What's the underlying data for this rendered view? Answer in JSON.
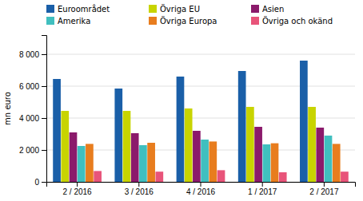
{
  "chart_data": {
    "type": "bar",
    "categories": [
      "2 / 2016",
      "3 / 2016",
      "4 / 2016",
      "1 / 2017",
      "2 / 2017"
    ],
    "series": [
      {
        "name": "Euroområdet",
        "color": "#1a5fa8",
        "values": [
          6450,
          5850,
          6600,
          6950,
          7600
        ]
      },
      {
        "name": "Övriga EU",
        "color": "#c8d400",
        "values": [
          4450,
          4450,
          4600,
          4700,
          4700
        ]
      },
      {
        "name": "Asien",
        "color": "#8b1a6b",
        "values": [
          3100,
          3050,
          3200,
          3450,
          3400
        ]
      },
      {
        "name": "Amerika",
        "color": "#40bfbf",
        "values": [
          2250,
          2300,
          2650,
          2350,
          2900
        ]
      },
      {
        "name": "Övriga Europa",
        "color": "#e87d1e",
        "values": [
          2380,
          2450,
          2530,
          2420,
          2380
        ]
      },
      {
        "name": "Övriga och okänd",
        "color": "#e8547a",
        "values": [
          680,
          640,
          730,
          600,
          640
        ]
      }
    ],
    "ylabel": "mn euro",
    "ylim": [
      0,
      9200
    ],
    "yticks": [
      0,
      {
        "value": 2000,
        "label": "2 000"
      },
      {
        "value": 4000,
        "label": "4 000"
      },
      {
        "value": 6000,
        "label": "6 000"
      },
      {
        "value": 8000,
        "label": "8 000"
      }
    ],
    "grid": true,
    "legend": "top"
  }
}
